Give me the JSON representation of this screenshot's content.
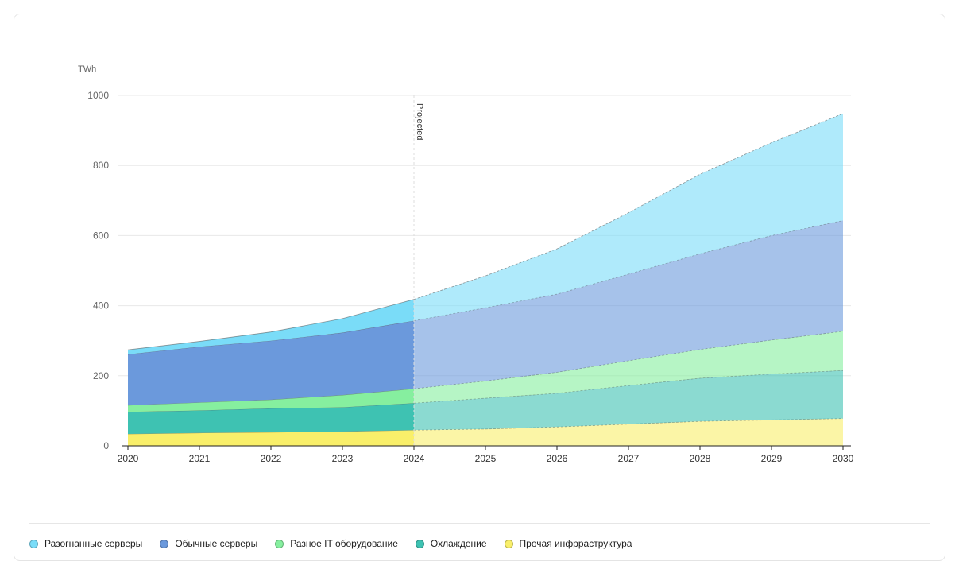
{
  "chart_data": {
    "type": "area",
    "stacked": true,
    "ylabel": "TWh",
    "ylim": [
      0,
      1000
    ],
    "yticks": [
      0,
      200,
      400,
      600,
      800,
      1000
    ],
    "x": [
      2020,
      2021,
      2022,
      2023,
      2024,
      2025,
      2026,
      2027,
      2028,
      2029,
      2030
    ],
    "projected_from": 2024,
    "projected_label": "Projected",
    "grid": true,
    "legend_position": "bottom",
    "series": [
      {
        "name": "Прочая инфрраструктура",
        "color": "#f9ef6a",
        "values": [
          34,
          37,
          39,
          41,
          45,
          48,
          54,
          62,
          70,
          74,
          78
        ]
      },
      {
        "name": "Охлаждение",
        "color": "#3ec2b2",
        "values": [
          63,
          64,
          68,
          69,
          77,
          88,
          96,
          110,
          123,
          131,
          137
        ]
      },
      {
        "name": "Разное IT оборудование",
        "color": "#86ef9f",
        "values": [
          19,
          23,
          25,
          35,
          41,
          49,
          60,
          71,
          82,
          97,
          112
        ]
      },
      {
        "name": "Обычные серверы",
        "color": "#6b99dc",
        "values": [
          145,
          159,
          168,
          178,
          194,
          209,
          223,
          247,
          273,
          298,
          316
        ]
      },
      {
        "name": "Разогнанные серверы",
        "color": "#7adcf8",
        "values": [
          13,
          15,
          25,
          40,
          61,
          91,
          129,
          175,
          227,
          265,
          305
        ]
      }
    ]
  },
  "legend_order": [
    4,
    3,
    2,
    1,
    0
  ]
}
